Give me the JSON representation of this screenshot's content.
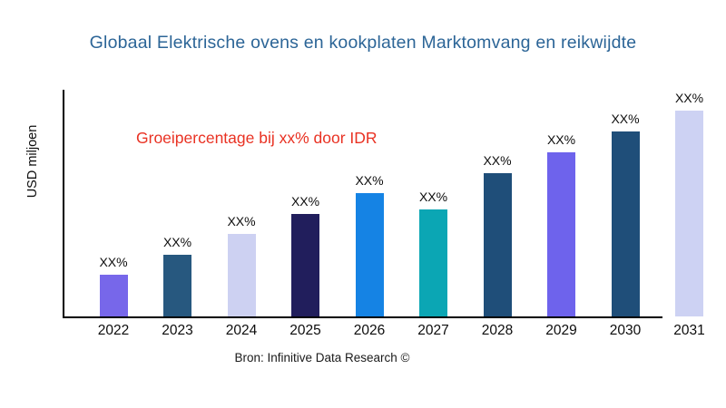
{
  "page": {
    "background": "#FFFFFF"
  },
  "chart_data": {
    "type": "bar",
    "title": "Globaal Elektrische ovens en kookplaten Marktomvang en reikwijdte",
    "title_color": "#2C6597",
    "ylabel": "USD miljoen",
    "xlabel": "",
    "annotation": "Groeipercentage bij xx% door IDR",
    "annotation_color": "#E93223",
    "source": "Bron: Infinitive Data Research ©",
    "categories": [
      "2022",
      "2023",
      "2024",
      "2025",
      "2026",
      "2027",
      "2028",
      "2029",
      "2030",
      "2031"
    ],
    "value_labels": [
      "XX%",
      "XX%",
      "XX%",
      "XX%",
      "XX%",
      "XX%",
      "XX%",
      "XX%",
      "XX%",
      "XX%"
    ],
    "relative_heights": [
      0.184,
      0.272,
      0.364,
      0.452,
      0.544,
      0.472,
      0.632,
      0.724,
      0.816,
      0.908
    ],
    "bar_colors": [
      "#7767EA",
      "#27587F",
      "#CDD1F2",
      "#211E5C",
      "#1583E4",
      "#0BA6B4",
      "#1F4E79",
      "#6E63EC",
      "#1F4E79",
      "#CDD2F3"
    ],
    "text_color": "#0D0D0D",
    "axis_color": "#000000",
    "grid": false,
    "legend": false
  }
}
